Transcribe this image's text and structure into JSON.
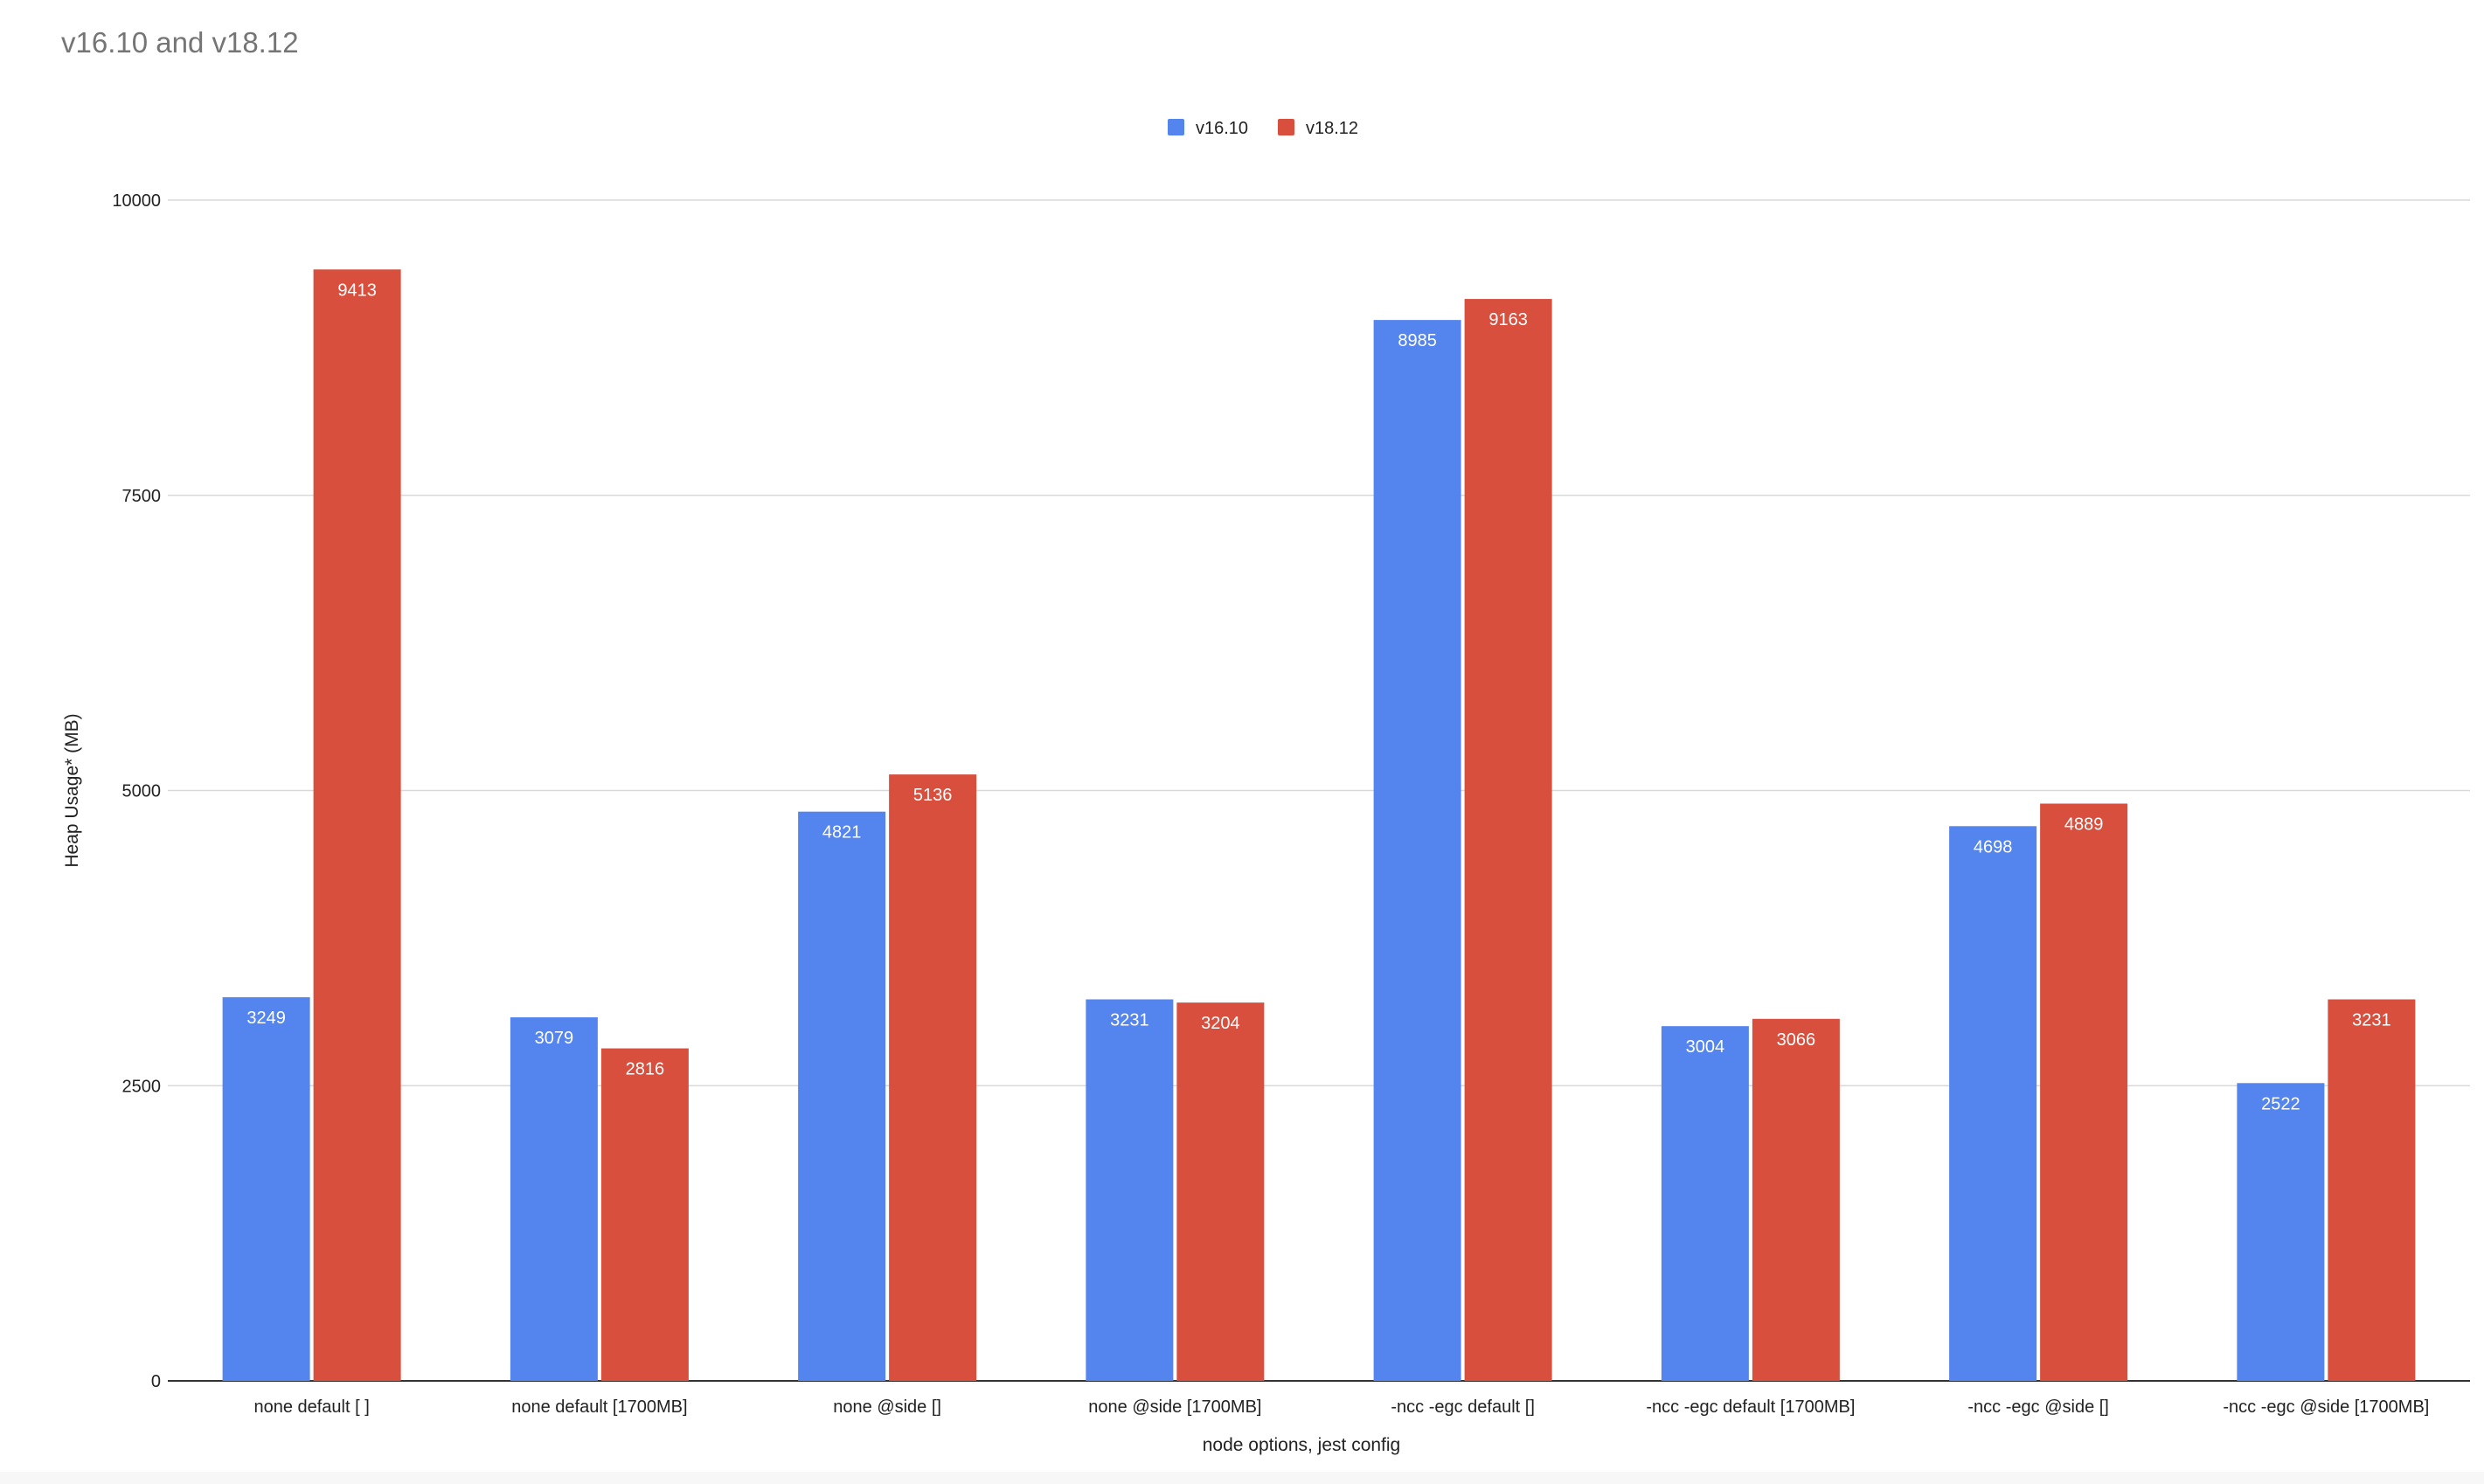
{
  "chart_data": {
    "type": "bar",
    "title": "v16.10 and v18.12",
    "xlabel": "node options, jest config",
    "ylabel": "Heap Usage* (MB)",
    "ylim": [
      0,
      10000
    ],
    "yticks": [
      0,
      2500,
      5000,
      7500,
      10000
    ],
    "grid": true,
    "legend_position": "top-center",
    "categories": [
      "none default [ ]",
      "none default [1700MB]",
      "none @side []",
      "none @side [1700MB]",
      "-ncc -egc default []",
      "-ncc -egc default [1700MB]",
      "-ncc -egc @side []",
      "-ncc -egc @side [1700MB]"
    ],
    "series": [
      {
        "name": "v16.10",
        "color": "#5484ed",
        "values": [
          3249,
          3079,
          4821,
          3231,
          8985,
          3004,
          4698,
          2522
        ]
      },
      {
        "name": "v18.12",
        "color": "#d84f3e",
        "values": [
          9413,
          2816,
          5136,
          3204,
          9163,
          3066,
          4889,
          3231
        ]
      }
    ]
  }
}
